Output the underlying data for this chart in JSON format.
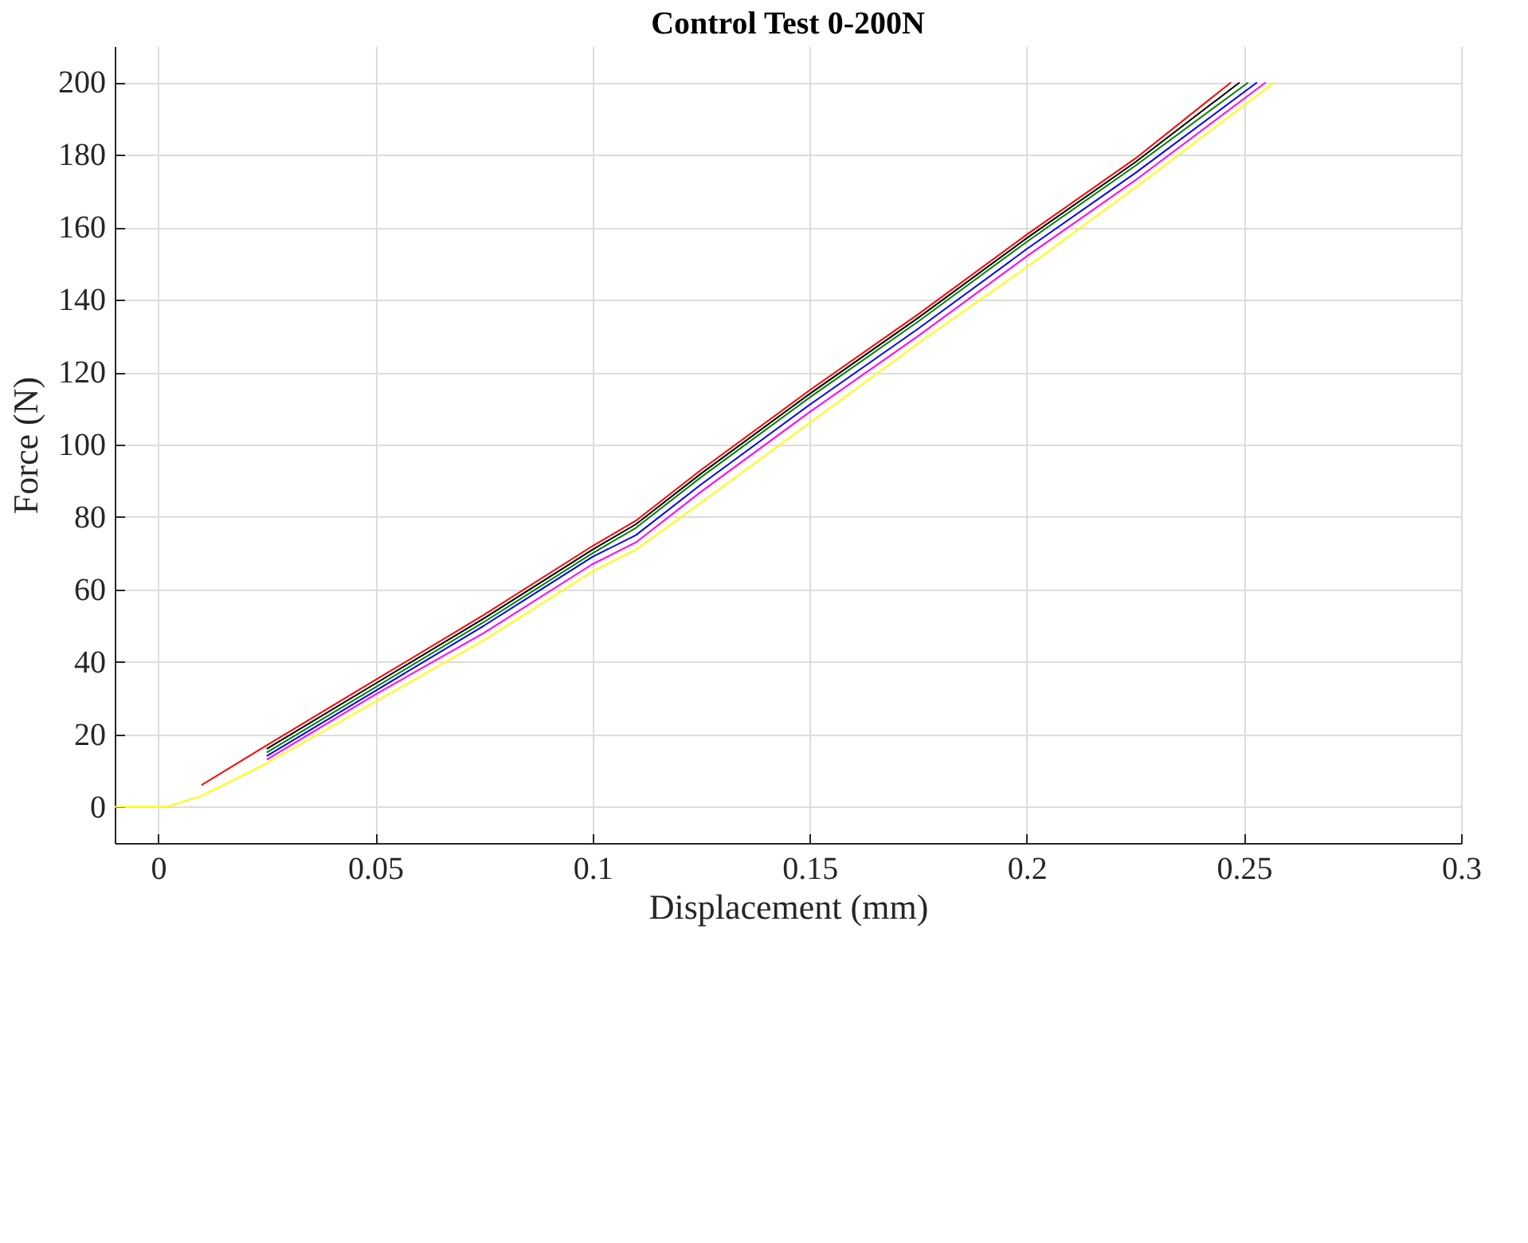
{
  "chart_data": {
    "type": "line",
    "title": "Control Test 0-200N",
    "xlabel": "Displacement (mm)",
    "ylabel": "Force (N)",
    "xlim": [
      -0.01,
      0.3
    ],
    "ylim": [
      -10,
      210
    ],
    "xticks": [
      0,
      0.05,
      {
        "value": 0.1,
        "label": "0.1"
      },
      0.15,
      {
        "value": 0.2,
        "label": "0.2"
      },
      0.25,
      {
        "value": 0.3,
        "label": "0.3"
      }
    ],
    "yticks": [
      0,
      20,
      40,
      60,
      80,
      100,
      120,
      140,
      160,
      180,
      200
    ],
    "grid": true,
    "line_style": "solid",
    "marker": "none",
    "series": [
      {
        "color": "#ff0000",
        "x": [
          0.01,
          0.025,
          0.05,
          0.075,
          0.1,
          0.11,
          0.125,
          0.15,
          0.175,
          0.2,
          0.225,
          0.247
        ],
        "values": [
          6,
          17,
          35,
          53,
          72,
          79,
          93,
          115,
          136,
          158,
          179,
          200
        ]
      },
      {
        "color": "#000000",
        "x": [
          0.025,
          0.05,
          0.075,
          0.1,
          0.11,
          0.125,
          0.15,
          0.175,
          0.2,
          0.225,
          0.249
        ],
        "values": [
          16,
          34,
          52,
          71,
          78,
          92,
          114,
          135,
          157,
          178,
          200
        ]
      },
      {
        "color": "#008000",
        "x": [
          0.025,
          0.05,
          0.075,
          0.1,
          0.11,
          0.125,
          0.15,
          0.175,
          0.2,
          0.225,
          0.251
        ],
        "values": [
          15,
          33,
          51,
          70,
          77,
          91,
          113,
          134,
          156,
          177,
          200
        ]
      },
      {
        "color": "#0000ff",
        "x": [
          0.025,
          0.05,
          0.075,
          0.1,
          0.11,
          0.125,
          0.15,
          0.175,
          0.2,
          0.225,
          0.253
        ],
        "values": [
          14,
          32,
          50,
          69,
          75,
          89,
          111,
          132,
          154,
          175,
          200
        ]
      },
      {
        "color": "#ff00ff",
        "x": [
          0.025,
          0.05,
          0.075,
          0.1,
          0.11,
          0.125,
          0.15,
          0.175,
          0.2,
          0.225,
          0.255
        ],
        "values": [
          13,
          31,
          48,
          67,
          73,
          87,
          109,
          130,
          152,
          173,
          200
        ]
      },
      {
        "color": "#ffff00",
        "x": [
          -0.01,
          0.002,
          0.01,
          0.025,
          0.05,
          0.075,
          0.1,
          0.11,
          0.125,
          0.15,
          0.175,
          0.2,
          0.225,
          0.257
        ],
        "values": [
          0,
          0,
          3,
          12,
          29,
          46,
          65,
          71,
          84,
          106,
          128,
          149,
          171,
          200
        ]
      }
    ]
  }
}
